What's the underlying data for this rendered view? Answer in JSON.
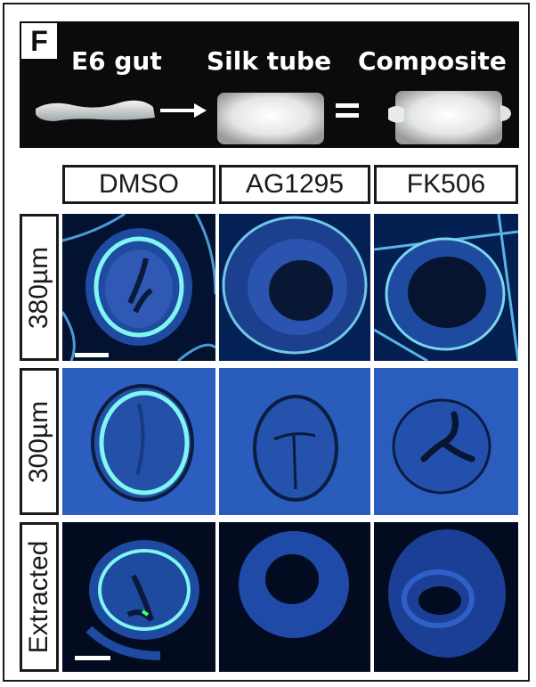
{
  "figure": {
    "panel_letter": "F",
    "banner": {
      "labels": [
        "E6 gut",
        "Silk tube",
        "Composite"
      ],
      "arrow_symbol": "→",
      "equals_symbol": "="
    },
    "columns": [
      "DMSO",
      "AG1295",
      "FK506"
    ],
    "rows": [
      "380µm",
      "300µm",
      "Extracted"
    ],
    "colors": {
      "banner_bg": "#0b0b0b",
      "stain_blue": "#2a5fc4",
      "stain_cyan": "#7ff7f0",
      "tissue_dark": "#0a1a3a",
      "scale_bar": "#ffffff"
    }
  }
}
